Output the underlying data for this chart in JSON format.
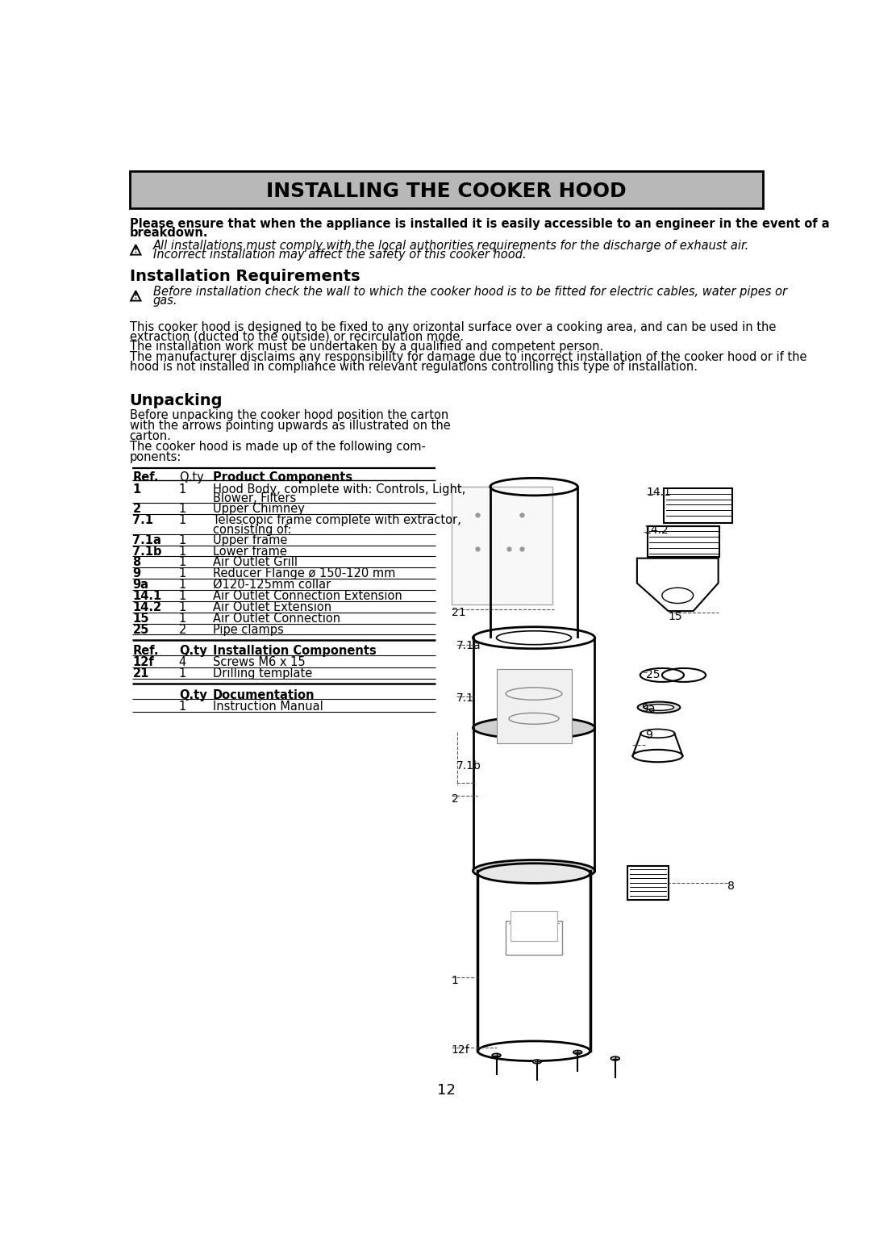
{
  "title": "INSTALLING THE COOKER HOOD",
  "title_bg": "#b8b8b8",
  "page_bg": "#ffffff",
  "bold_line1": "Please ensure that when the appliance is installed it is easily accessible to an engineer in the event of a",
  "bold_line2": "breakdown.",
  "warn1_line1": "All installations must comply with the local authorities requirements for the discharge of exhaust air.",
  "warn1_line2": "Incorrect installation may affect the safety of this cooker hood.",
  "section1": "Installation Requirements",
  "warn2_line1": "Before installation check the wall to which the cooker hood is to be fitted for electric cables, water pipes or",
  "warn2_line2": "gas.",
  "body1_line1": "This cooker hood is designed to be fixed to any orizontal surface over a cooking area, and can be used in the",
  "body1_line2": "extraction (ducted to the outside) or recirculation mode.",
  "body2": "The installation work must be undertaken by a qualified and competent person.",
  "body3_line1": "The manufacturer disclaims any responsibility for damage due to incorrect installation of the cooker hood or if the",
  "body3_line2": "hood is not installed in compliance with relevant regulations controlling this type of installation.",
  "section2": "Unpacking",
  "unpack1": "Before unpacking the cooker hood position the carton",
  "unpack2": "with the arrows pointing upwards as illustrated on the",
  "unpack3": "carton.",
  "unpack4": "The cooker hood is made up of the following com-",
  "unpack5": "ponents:",
  "ph": [
    "Ref.",
    "Q.ty",
    "Product Components"
  ],
  "pr": [
    [
      "1",
      "1",
      "Hood Body, complete with: Controls, Light,",
      "Blower, Filters"
    ],
    [
      "2",
      "1",
      "Upper Chimney",
      ""
    ],
    [
      "7.1",
      "1",
      "Telescopic frame complete with extractor,",
      "consisting of:"
    ],
    [
      "7.1a",
      "1",
      "Upper frame",
      ""
    ],
    [
      "7.1b",
      "1",
      "Lower frame",
      ""
    ],
    [
      "8",
      "1",
      "Air Outlet Grill",
      ""
    ],
    [
      "9",
      "1",
      "Reducer Flange ø 150-120 mm",
      ""
    ],
    [
      "9a",
      "1",
      "Ø120-125mm collar",
      ""
    ],
    [
      "14.1",
      "1",
      "Air Outlet Connection Extension",
      ""
    ],
    [
      "14.2",
      "1",
      "Air Outlet Extension",
      ""
    ],
    [
      "15",
      "1",
      "Air Outlet Connection",
      ""
    ],
    [
      "25",
      "2",
      "Pipe clamps",
      ""
    ]
  ],
  "ih": [
    "Ref.",
    "Q.ty",
    "Installation Components"
  ],
  "ir": [
    [
      "12f",
      "4",
      "Screws M6 x 15"
    ],
    [
      "21",
      "1",
      "Drilling template"
    ]
  ],
  "dh": [
    "Q.ty",
    "Documentation"
  ],
  "dr": [
    [
      "1",
      "Instruction Manual"
    ]
  ],
  "page_number": "12"
}
